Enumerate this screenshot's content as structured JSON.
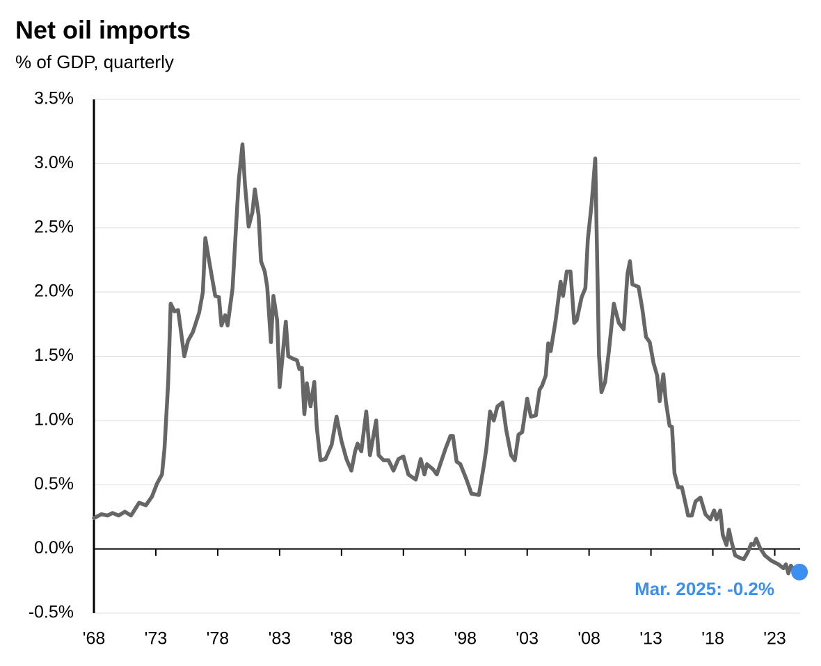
{
  "chart_data": {
    "type": "line",
    "title": "Net oil imports",
    "subtitle": "% of GDP, quarterly",
    "annotation": "Mar. 2025: -0.2%",
    "color": "#666666",
    "highlight_color": "#3d8fef",
    "grid": true,
    "xlim": [
      1968,
      2025.05
    ],
    "ylim": [
      -0.5,
      3.5
    ],
    "yticks": [
      {
        "value": -0.5,
        "label": "-0.5%"
      },
      {
        "value": 0,
        "label": "0.0%"
      },
      {
        "value": 0.5,
        "label": "0.5%"
      },
      {
        "value": 1,
        "label": "1.0%"
      },
      {
        "value": 1.5,
        "label": "1.5%"
      },
      {
        "value": 2,
        "label": "2.0%"
      },
      {
        "value": 2.5,
        "label": "2.5%"
      },
      {
        "value": 3,
        "label": "3.0%"
      },
      {
        "value": 3.5,
        "label": "3.5%"
      }
    ],
    "xticks": [
      {
        "value": 1968,
        "label": "'68"
      },
      {
        "value": 1973,
        "label": "'73"
      },
      {
        "value": 1978,
        "label": "'78"
      },
      {
        "value": 1983,
        "label": "'83"
      },
      {
        "value": 1988,
        "label": "'88"
      },
      {
        "value": 1993,
        "label": "'93"
      },
      {
        "value": 1998,
        "label": "'98"
      },
      {
        "value": 2003,
        "label": "'03"
      },
      {
        "value": 2008,
        "label": "'08"
      },
      {
        "value": 2013,
        "label": "'13"
      },
      {
        "value": 2018,
        "label": "'18"
      },
      {
        "value": 2023,
        "label": "'23"
      }
    ],
    "x": [
      1968.0,
      1968.6,
      1969.1,
      1969.5,
      1970.0,
      1970.5,
      1971.0,
      1971.65,
      1972.2,
      1972.7,
      1973.1,
      1973.5,
      1973.7,
      1974.0,
      1974.2,
      1974.5,
      1974.8,
      1975.3,
      1975.6,
      1976.0,
      1976.5,
      1976.8,
      1977.0,
      1977.4,
      1977.8,
      1978.1,
      1978.3,
      1978.6,
      1978.8,
      1979.2,
      1979.5,
      1979.7,
      1980.0,
      1980.2,
      1980.5,
      1980.8,
      1981.0,
      1981.3,
      1981.5,
      1981.8,
      1982.0,
      1982.3,
      1982.5,
      1982.8,
      1983.0,
      1983.2,
      1983.5,
      1983.7,
      1984.1,
      1984.4,
      1984.6,
      1984.8,
      1985.0,
      1985.2,
      1985.5,
      1985.8,
      1986.0,
      1986.3,
      1986.7,
      1987.2,
      1987.6,
      1988.0,
      1988.4,
      1988.8,
      1989.1,
      1989.3,
      1989.6,
      1990.0,
      1990.3,
      1990.8,
      1991.0,
      1991.4,
      1991.8,
      1992.2,
      1992.6,
      1993.0,
      1993.4,
      1994.0,
      1994.4,
      1994.7,
      1994.9,
      1995.4,
      1995.7,
      1996.4,
      1996.8,
      1997.0,
      1997.3,
      1997.6,
      1998.1,
      1998.5,
      1999.1,
      1999.5,
      1999.7,
      2000.0,
      2000.3,
      2000.6,
      2001.0,
      2001.3,
      2001.7,
      2002.0,
      2002.3,
      2002.6,
      2003.0,
      2003.3,
      2003.7,
      2004.0,
      2004.2,
      2004.5,
      2004.7,
      2004.9,
      2005.3,
      2005.7,
      2005.9,
      2006.2,
      2006.5,
      2006.8,
      2007.0,
      2007.4,
      2007.7,
      2007.9,
      2008.2,
      2008.5,
      2008.8,
      2009.0,
      2009.3,
      2009.6,
      2010.0,
      2010.4,
      2010.8,
      2011.1,
      2011.3,
      2011.5,
      2012.0,
      2012.3,
      2012.6,
      2012.9,
      2013.2,
      2013.5,
      2013.7,
      2014.0,
      2014.2,
      2014.5,
      2014.7,
      2014.9,
      2015.2,
      2015.5,
      2015.8,
      2016.0,
      2016.3,
      2016.6,
      2017.0,
      2017.4,
      2017.8,
      2018.1,
      2018.3,
      2018.6,
      2018.8,
      2019.1,
      2019.3,
      2019.5,
      2019.8,
      2020.2,
      2020.5,
      2020.8,
      2021.1,
      2021.3,
      2021.5,
      2021.8,
      2022.2,
      2022.7,
      2023.3,
      2023.7,
      2023.9,
      2024.1,
      2024.3,
      2024.6,
      2025.0
    ],
    "values": [
      0.24,
      0.27,
      0.26,
      0.28,
      0.26,
      0.29,
      0.26,
      0.36,
      0.34,
      0.41,
      0.51,
      0.58,
      0.78,
      1.3,
      1.91,
      1.85,
      1.86,
      1.5,
      1.62,
      1.69,
      1.84,
      2.0,
      2.42,
      2.19,
      1.97,
      1.96,
      1.74,
      1.82,
      1.74,
      2.03,
      2.54,
      2.87,
      3.15,
      2.84,
      2.51,
      2.62,
      2.8,
      2.6,
      2.24,
      2.16,
      2.04,
      1.61,
      1.97,
      1.78,
      1.26,
      1.46,
      1.77,
      1.5,
      1.48,
      1.47,
      1.4,
      1.41,
      1.05,
      1.29,
      1.11,
      1.3,
      0.95,
      0.69,
      0.7,
      0.81,
      1.03,
      0.84,
      0.7,
      0.61,
      0.76,
      0.82,
      0.76,
      1.07,
      0.73,
      1.0,
      0.73,
      0.69,
      0.69,
      0.61,
      0.7,
      0.72,
      0.58,
      0.54,
      0.7,
      0.58,
      0.66,
      0.62,
      0.58,
      0.78,
      0.88,
      0.88,
      0.68,
      0.66,
      0.54,
      0.43,
      0.42,
      0.65,
      0.78,
      1.07,
      1.0,
      1.11,
      1.14,
      0.93,
      0.73,
      0.69,
      0.89,
      0.91,
      1.17,
      1.03,
      1.04,
      1.24,
      1.27,
      1.35,
      1.6,
      1.54,
      1.78,
      2.08,
      1.97,
      2.16,
      2.16,
      1.76,
      1.78,
      1.96,
      2.03,
      2.41,
      2.68,
      3.04,
      1.51,
      1.22,
      1.3,
      1.54,
      1.91,
      1.76,
      1.71,
      2.14,
      2.24,
      2.06,
      2.04,
      1.87,
      1.65,
      1.61,
      1.45,
      1.35,
      1.15,
      1.36,
      1.15,
      0.96,
      0.95,
      0.59,
      0.48,
      0.48,
      0.35,
      0.26,
      0.26,
      0.37,
      0.4,
      0.27,
      0.23,
      0.3,
      0.23,
      0.3,
      0.11,
      0.03,
      0.15,
      0.06,
      -0.05,
      -0.07,
      -0.08,
      -0.03,
      0.04,
      0.03,
      0.08,
      0.01,
      -0.05,
      -0.09,
      -0.12,
      -0.15,
      -0.12,
      -0.19,
      -0.13,
      -0.17,
      -0.18
    ]
  }
}
